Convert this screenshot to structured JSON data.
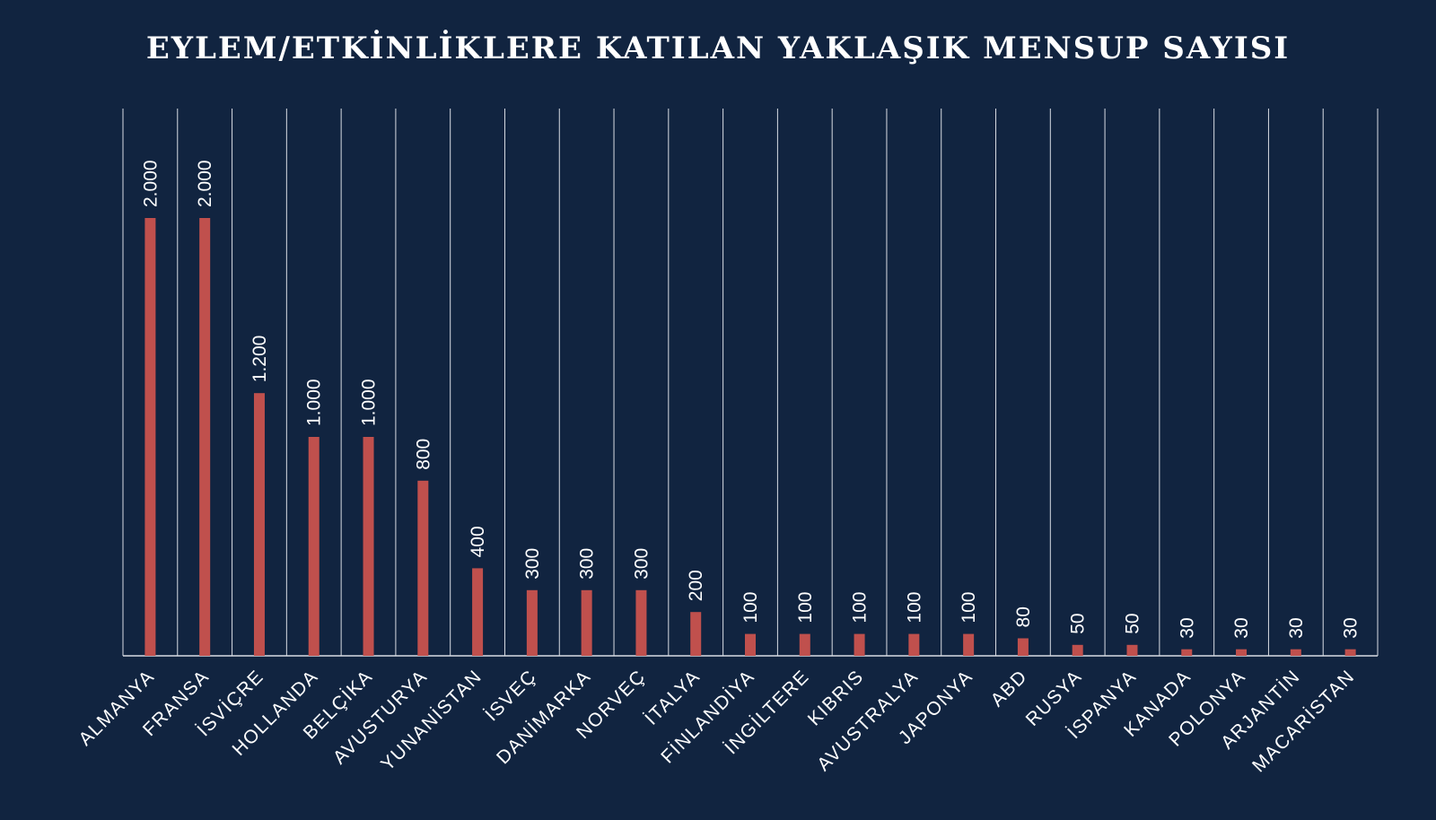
{
  "colors": {
    "background": "#112440",
    "bar": "#c0504d",
    "gridline": "#d9dde4",
    "text": "#ffffff"
  },
  "chart_data": {
    "type": "bar",
    "title": "EYLEM/ETKİNLİKLERE KATILAN YAKLAŞIK MENSUP SAYISI",
    "xlabel": "",
    "ylabel": "",
    "ylim": [
      0,
      2500
    ],
    "grid": "vertical separators",
    "legend": "none",
    "categories": [
      "ALMANYA",
      "FRANSA",
      "İSVİÇRE",
      "HOLLANDA",
      "BELÇİKA",
      "AVUSTURYA",
      "YUNANİSTAN",
      "İSVEÇ",
      "DANİMARKA",
      "NORVEÇ",
      "İTALYA",
      "FİNLANDİYA",
      "İNGİLTERE",
      "KIBRIS",
      "AVUSTRALYA",
      "JAPONYA",
      "ABD",
      "RUSYA",
      "İSPANYA",
      "KANADA",
      "POLONYA",
      "ARJANTİN",
      "MACARİSTAN"
    ],
    "values": [
      2000,
      2000,
      1200,
      1000,
      1000,
      800,
      400,
      300,
      300,
      300,
      200,
      100,
      100,
      100,
      100,
      100,
      80,
      50,
      50,
      30,
      30,
      30,
      30
    ],
    "value_labels": [
      "2.000",
      "2.000",
      "1.200",
      "1.000",
      "1.000",
      "800",
      "400",
      "300",
      "300",
      "300",
      "200",
      "100",
      "100",
      "100",
      "100",
      "100",
      "80",
      "50",
      "50",
      "30",
      "30",
      "30",
      "30"
    ]
  }
}
